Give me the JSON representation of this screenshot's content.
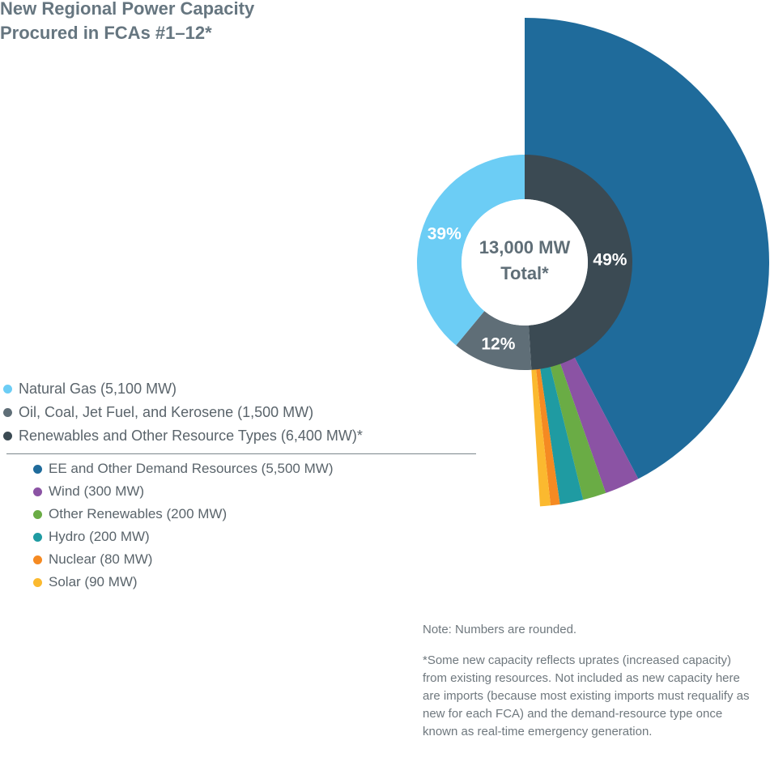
{
  "title": {
    "line1": "New Regional Power Capacity",
    "line2": "Procured in FCAs #1–12*"
  },
  "chart_data": {
    "type": "pie",
    "title": "New Regional Power Capacity Procured in FCAs #1–12*",
    "center_label": {
      "line1": "13,000 MW",
      "line2": "Total*"
    },
    "inner_ring": [
      {
        "name": "Renewables and Other Resource Types",
        "value_mw": 6400,
        "percent": 49,
        "label": "49%",
        "color": "#3b4a53"
      },
      {
        "name": "Oil, Coal, Jet Fuel, and Kerosene",
        "value_mw": 1500,
        "percent": 12,
        "label": "12%",
        "color": "#5f6e77"
      },
      {
        "name": "Natural Gas",
        "value_mw": 5100,
        "percent": 39,
        "label": "39%",
        "color": "#6ccdf5"
      }
    ],
    "outer_breakdown_of": "Renewables and Other Resource Types",
    "outer_ring": [
      {
        "name": "EE and Other Demand Resources",
        "value_mw": 5500,
        "color": "#1f6b9b"
      },
      {
        "name": "Wind",
        "value_mw": 300,
        "color": "#8b53a4"
      },
      {
        "name": "Other Renewables",
        "value_mw": 200,
        "color": "#6aac45"
      },
      {
        "name": "Hydro",
        "value_mw": 200,
        "color": "#1f9ba2"
      },
      {
        "name": "Nuclear",
        "value_mw": 80,
        "color": "#f58a22"
      },
      {
        "name": "Solar",
        "value_mw": 90,
        "color": "#fbb92f"
      }
    ]
  },
  "legend": {
    "main": [
      {
        "label": "Natural Gas (5,100 MW)",
        "color": "#6ccdf5"
      },
      {
        "label": "Oil, Coal, Jet Fuel, and Kerosene (1,500 MW)",
        "color": "#5f6e77"
      },
      {
        "label": "Renewables and Other Resource Types (6,400 MW)*",
        "color": "#3b4a53"
      }
    ],
    "sub": [
      {
        "label": "EE and Other Demand Resources (5,500 MW)",
        "color": "#1f6b9b"
      },
      {
        "label": "Wind (300 MW)",
        "color": "#8b53a4"
      },
      {
        "label": "Other Renewables (200 MW)",
        "color": "#6aac45"
      },
      {
        "label": "Hydro (200 MW)",
        "color": "#1f9ba2"
      },
      {
        "label": "Nuclear (80 MW)",
        "color": "#f58a22"
      },
      {
        "label": "Solar (90 MW)",
        "color": "#fbb92f"
      }
    ]
  },
  "notes": {
    "note1": "Note: Numbers are rounded.",
    "note2": "*Some new capacity reflects uprates (increased capacity) from existing resources. Not included as new capacity here are imports (because most existing imports must requalify as new for each FCA) and the demand-resource type once known as real-time emergency generation."
  }
}
